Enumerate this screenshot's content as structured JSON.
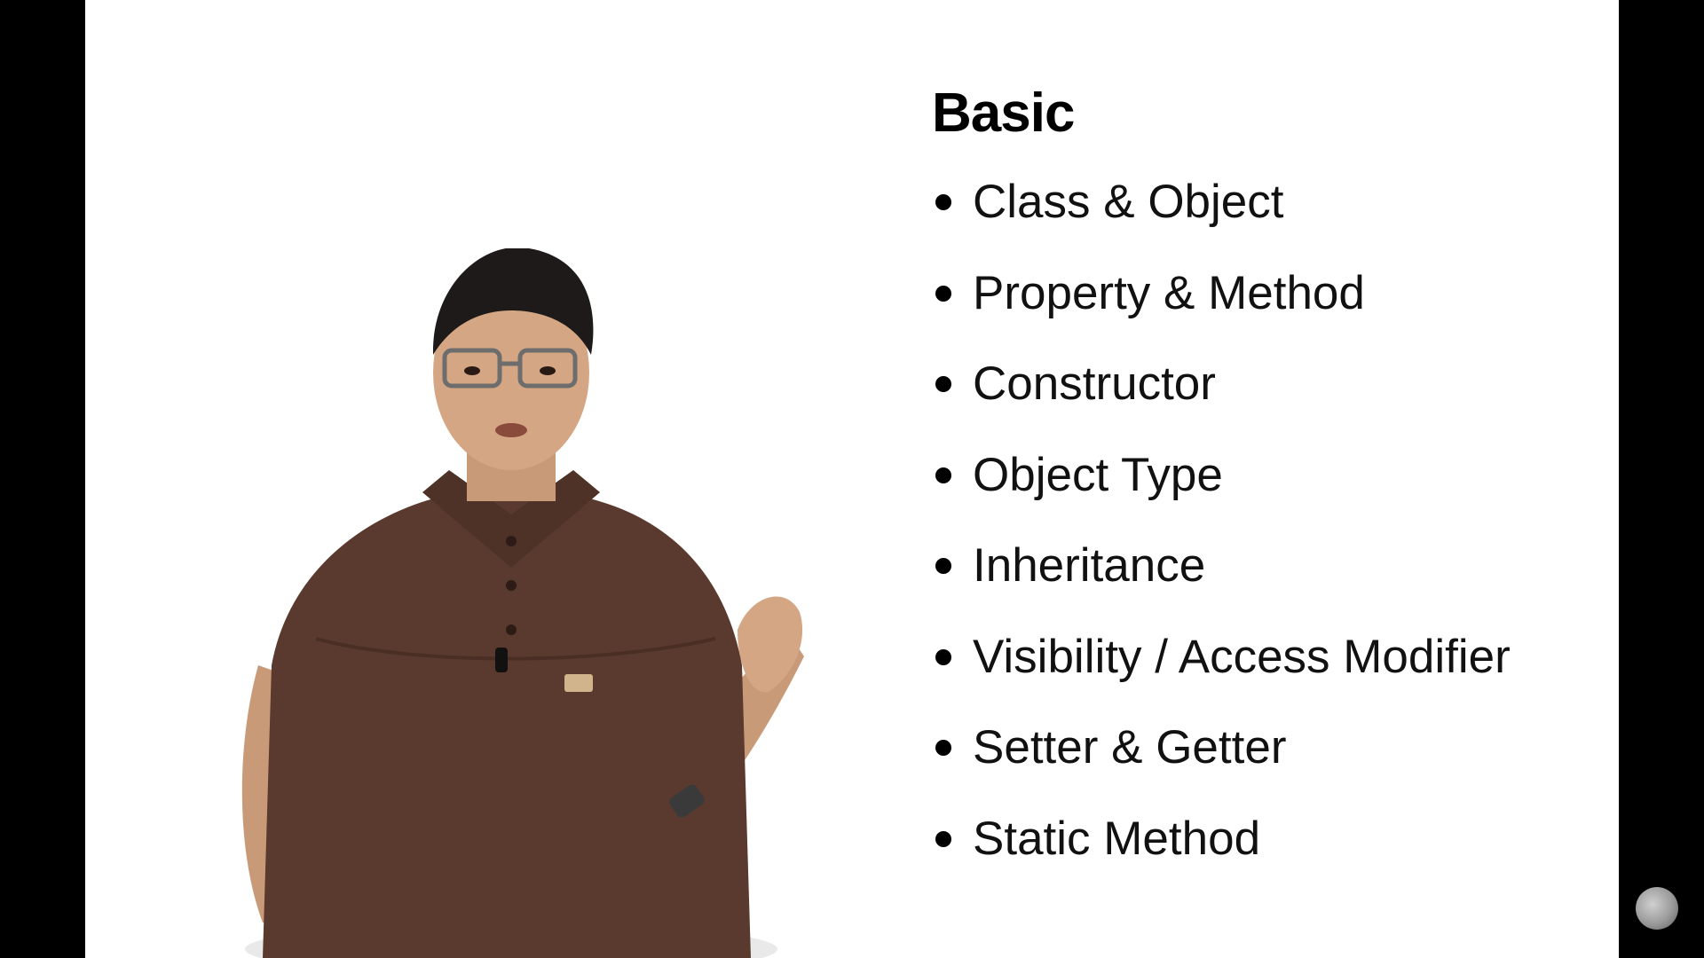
{
  "slide": {
    "title": "Basic",
    "topics": [
      "Class & Object",
      "Property & Method",
      "Constructor",
      "Object Type",
      "Inheritance",
      "Visibility / Access Modifier",
      "Setter & Getter",
      "Static Method"
    ]
  },
  "presenter": {
    "icon": "presenter-figure"
  },
  "overlay": {
    "icon": "channel-logo-icon"
  },
  "colors": {
    "background": "#ffffff",
    "letterbox": "#000000",
    "text": "#111111",
    "shirt": "#5a3a2e"
  }
}
